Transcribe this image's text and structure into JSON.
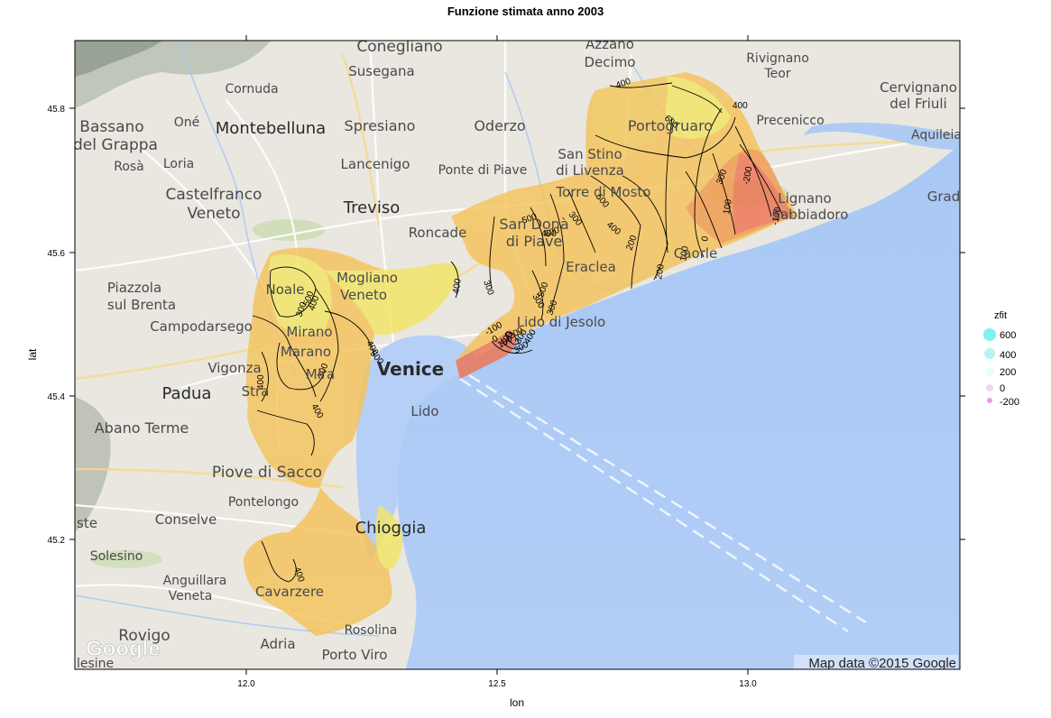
{
  "title": "Funzione stimata anno 2003",
  "axes": {
    "xlabel": "lon",
    "ylabel": "lat",
    "x_ticks": [
      "12.0",
      "12.5",
      "13.0"
    ],
    "y_ticks": [
      "45.2",
      "45.4",
      "45.6",
      "45.8"
    ]
  },
  "legend": {
    "title": "zfit",
    "items": [
      {
        "label": "600",
        "color": "#7ff2f0"
      },
      {
        "label": "400",
        "color": "#b6f3f2"
      },
      {
        "label": "200",
        "color": "#ecfbfb"
      },
      {
        "label": "0",
        "color": "#f6d4f4"
      },
      {
        "label": "-200",
        "color": "#e99be6"
      }
    ]
  },
  "map": {
    "attribution": "Map data ©2015 Google",
    "logo": "Google",
    "places": [
      {
        "name": "Conegliano"
      },
      {
        "name": "Azzano"
      },
      {
        "name": "Decimo"
      },
      {
        "name": "Rivignano"
      },
      {
        "name": "Teor"
      },
      {
        "name": "Susegana"
      },
      {
        "name": "Cornuda"
      },
      {
        "name": "Cervignano"
      },
      {
        "name": "del Friuli"
      },
      {
        "name": "Bassano"
      },
      {
        "name": "del Grappa"
      },
      {
        "name": "Oné"
      },
      {
        "name": "Montebelluna"
      },
      {
        "name": "Spresiano"
      },
      {
        "name": "Oderzo"
      },
      {
        "name": "Portogruaro"
      },
      {
        "name": "Precenicco"
      },
      {
        "name": "Aquileia"
      },
      {
        "name": "Rosà"
      },
      {
        "name": "Loria"
      },
      {
        "name": "Lancenigo"
      },
      {
        "name": "Ponte di Piave"
      },
      {
        "name": "San Stino"
      },
      {
        "name": "di Livenza"
      },
      {
        "name": "Castelfranco"
      },
      {
        "name": "Veneto"
      },
      {
        "name": "Torre di Mosto"
      },
      {
        "name": "Lignano"
      },
      {
        "name": "Sabbiadoro"
      },
      {
        "name": "Grad"
      },
      {
        "name": "Treviso"
      },
      {
        "name": "Roncade"
      },
      {
        "name": "San Donà"
      },
      {
        "name": "di Piave"
      },
      {
        "name": "Caorle"
      },
      {
        "name": "Piazzola"
      },
      {
        "name": "sul Brenta"
      },
      {
        "name": "Noale"
      },
      {
        "name": "Mogliano"
      },
      {
        "name": "Veneto"
      },
      {
        "name": "Eraclea"
      },
      {
        "name": "Campodarsego"
      },
      {
        "name": "Mirano"
      },
      {
        "name": "Lido di Jesolo"
      },
      {
        "name": "Marano"
      },
      {
        "name": "Vigonza"
      },
      {
        "name": "Mira"
      },
      {
        "name": "Venice"
      },
      {
        "name": "Padua"
      },
      {
        "name": "Stra"
      },
      {
        "name": "Lido"
      },
      {
        "name": "Abano Terme"
      },
      {
        "name": "Piove di Sacco"
      },
      {
        "name": "Pontelongo"
      },
      {
        "name": "Conselve"
      },
      {
        "name": "Chioggia"
      },
      {
        "name": "Solesino"
      },
      {
        "name": "Anguillara"
      },
      {
        "name": "Veneta"
      },
      {
        "name": "Cavarzere"
      },
      {
        "name": "Rovigo"
      },
      {
        "name": "Rosolina"
      },
      {
        "name": "Adria"
      },
      {
        "name": "Porto Viro"
      },
      {
        "name": "lesine"
      },
      {
        "name": "ste"
      }
    ]
  },
  "contour_labels": [
    "400",
    "600",
    "300",
    "400",
    "200",
    "-200",
    "100",
    "-100",
    "0",
    "100",
    "200",
    "300",
    "400",
    "500",
    "600",
    "500",
    "400",
    "300",
    "300",
    "400",
    "500",
    "300",
    "400",
    "500",
    "300",
    "400",
    "500",
    "400",
    "300",
    "400",
    "400",
    "400",
    "500",
    "300",
    "-100",
    "0",
    "100",
    "200",
    "300"
  ]
}
